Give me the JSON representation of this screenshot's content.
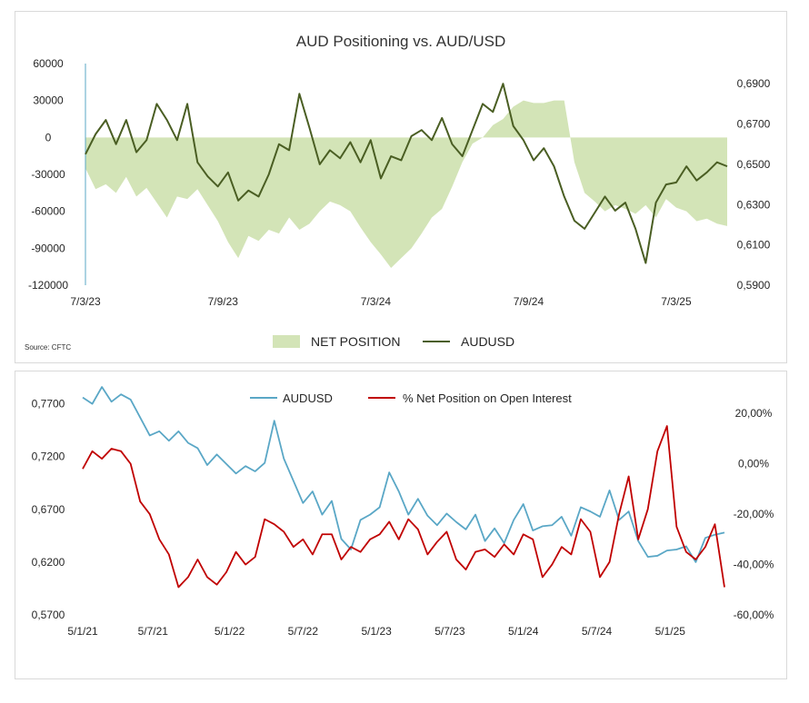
{
  "chart_data": [
    {
      "type": "area+line",
      "title": "AUD Positioning vs. AUD/USD",
      "source": "Source: CFTC",
      "x_ticks": [
        "7/3/23",
        "7/9/23",
        "7/3/24",
        "7/9/24",
        "7/3/25"
      ],
      "y_left_ticks": [
        "60000",
        "30000",
        "0",
        "-30000",
        "-60000",
        "-90000",
        "-120000"
      ],
      "y_left_lim": [
        -120000,
        60000
      ],
      "y_right_ticks": [
        "0,6900",
        "0,6700",
        "0,6500",
        "0,6300",
        "0,6100",
        "0,5900"
      ],
      "y_right_lim": [
        0.59,
        0.7
      ],
      "legend": {
        "placement": "bottom",
        "items": [
          "NET POSITION",
          "AUDUSD"
        ]
      },
      "colors": {
        "net_position": "#d3e4b7",
        "audusd": "#4a5e23"
      },
      "series": [
        {
          "name": "NET POSITION",
          "axis": "left",
          "x_index": [
            0,
            2,
            4,
            6,
            8,
            10,
            12,
            14,
            16,
            18,
            20,
            22,
            24,
            26,
            28,
            30,
            32,
            34,
            36,
            38,
            40,
            42,
            44,
            46,
            48,
            50,
            52,
            54,
            56,
            58,
            60,
            62,
            64,
            66,
            68,
            70,
            72,
            74,
            76,
            78,
            80,
            82,
            84,
            86,
            88,
            90,
            92,
            94,
            96,
            98,
            100,
            102,
            104,
            106,
            108,
            110,
            112,
            114,
            116,
            118,
            120,
            122,
            124,
            126
          ],
          "values": [
            -25000,
            -42000,
            -38000,
            -45000,
            -32000,
            -48000,
            -41000,
            -53000,
            -65000,
            -48000,
            -50000,
            -42000,
            -55000,
            -68000,
            -85000,
            -98000,
            -80000,
            -84000,
            -75000,
            -78000,
            -65000,
            -75000,
            -70000,
            -60000,
            -52000,
            -55000,
            -60000,
            -73000,
            -85000,
            -95000,
            -106000,
            -98000,
            -90000,
            -78000,
            -65000,
            -58000,
            -40000,
            -20000,
            -5000,
            0,
            10000,
            15000,
            25000,
            30000,
            28000,
            28000,
            30000,
            30000,
            -20000,
            -45000,
            -52000,
            -60000,
            -55000,
            -58000,
            -62000,
            -55000,
            -65000,
            -50000,
            -57000,
            -60000,
            -68000,
            -66000,
            -70000,
            -72000
          ]
        },
        {
          "name": "AUDUSD",
          "axis": "right",
          "x_index": [
            0,
            2,
            4,
            6,
            8,
            10,
            12,
            14,
            16,
            18,
            20,
            22,
            24,
            26,
            28,
            30,
            32,
            34,
            36,
            38,
            40,
            42,
            44,
            46,
            48,
            50,
            52,
            54,
            56,
            58,
            60,
            62,
            64,
            66,
            68,
            70,
            72,
            74,
            76,
            78,
            80,
            82,
            84,
            86,
            88,
            90,
            92,
            94,
            96,
            98,
            100,
            102,
            104,
            106,
            108,
            110,
            112,
            114,
            116,
            118,
            120,
            122,
            124,
            126
          ],
          "values": [
            0.655,
            0.665,
            0.672,
            0.66,
            0.672,
            0.656,
            0.662,
            0.68,
            0.672,
            0.662,
            0.68,
            0.651,
            0.644,
            0.639,
            0.646,
            0.632,
            0.637,
            0.634,
            0.645,
            0.66,
            0.657,
            0.685,
            0.668,
            0.65,
            0.657,
            0.653,
            0.661,
            0.651,
            0.662,
            0.643,
            0.654,
            0.652,
            0.664,
            0.667,
            0.662,
            0.673,
            0.66,
            0.654,
            0.667,
            0.68,
            0.676,
            0.69,
            0.669,
            0.662,
            0.652,
            0.658,
            0.649,
            0.634,
            0.622,
            0.618,
            0.626,
            0.634,
            0.627,
            0.631,
            0.618,
            0.601,
            0.631,
            0.64,
            0.641,
            0.649,
            0.642,
            0.646,
            0.651,
            0.649
          ]
        }
      ]
    },
    {
      "type": "line",
      "title": "",
      "x_ticks": [
        "5/1/21",
        "5/7/21",
        "5/1/22",
        "5/7/22",
        "5/1/23",
        "5/7/23",
        "5/1/24",
        "5/7/24",
        "5/1/25"
      ],
      "y_left_ticks": [
        "0,7700",
        "0,7200",
        "0,6700",
        "0,6200",
        "0,5700"
      ],
      "y_left_lim": [
        0.57,
        0.78
      ],
      "y_right_ticks": [
        "20,00%",
        "0,00%",
        "-20,00%",
        "-40,00%",
        "-60,00%"
      ],
      "y_right_lim": [
        -60,
        28
      ],
      "legend": {
        "placement": "top",
        "items": [
          "AUDUSD",
          "% Net Position on Open Interest"
        ]
      },
      "colors": {
        "audusd": "#5aa7c6",
        "net_oi": "#c00000"
      },
      "series": [
        {
          "name": "AUDUSD",
          "axis": "left",
          "x_index": [
            0,
            3,
            6,
            9,
            12,
            15,
            18,
            21,
            24,
            27,
            30,
            33,
            36,
            39,
            42,
            45,
            48,
            51,
            54,
            57,
            60,
            63,
            66,
            69,
            72,
            75,
            78,
            81,
            84,
            87,
            90,
            93,
            96,
            99,
            102,
            105,
            108,
            111,
            114,
            117,
            120,
            123,
            126,
            129,
            132,
            135,
            138,
            141,
            144,
            147,
            150,
            153,
            156,
            159,
            162,
            165,
            168,
            171,
            174,
            177,
            180,
            183,
            186,
            189,
            192,
            195,
            198,
            201
          ],
          "values": [
            0.776,
            0.77,
            0.786,
            0.772,
            0.779,
            0.774,
            0.757,
            0.74,
            0.744,
            0.735,
            0.744,
            0.733,
            0.728,
            0.712,
            0.722,
            0.713,
            0.704,
            0.711,
            0.706,
            0.714,
            0.754,
            0.718,
            0.697,
            0.676,
            0.687,
            0.665,
            0.678,
            0.642,
            0.632,
            0.66,
            0.665,
            0.672,
            0.705,
            0.687,
            0.665,
            0.68,
            0.664,
            0.655,
            0.666,
            0.658,
            0.651,
            0.665,
            0.64,
            0.652,
            0.638,
            0.66,
            0.675,
            0.65,
            0.654,
            0.655,
            0.663,
            0.645,
            0.672,
            0.668,
            0.663,
            0.688,
            0.66,
            0.668,
            0.64,
            0.625,
            0.626,
            0.631,
            0.632,
            0.635,
            0.62,
            0.643,
            0.646,
            0.648
          ]
        },
        {
          "name": "% Net Position on Open Interest",
          "axis": "right",
          "x_index": [
            0,
            3,
            6,
            9,
            12,
            15,
            18,
            21,
            24,
            27,
            30,
            33,
            36,
            39,
            42,
            45,
            48,
            51,
            54,
            57,
            60,
            63,
            66,
            69,
            72,
            75,
            78,
            81,
            84,
            87,
            90,
            93,
            96,
            99,
            102,
            105,
            108,
            111,
            114,
            117,
            120,
            123,
            126,
            129,
            132,
            135,
            138,
            141,
            144,
            147,
            150,
            153,
            156,
            159,
            162,
            165,
            168,
            171,
            174,
            177,
            180,
            183,
            186,
            189,
            192,
            195,
            198,
            201
          ],
          "values": [
            -2,
            5,
            2,
            6,
            5,
            0,
            -15,
            -20,
            -30,
            -36,
            -49,
            -45,
            -38,
            -45,
            -48,
            -43,
            -35,
            -40,
            -37,
            -22,
            -24,
            -27,
            -33,
            -30,
            -36,
            -28,
            -28,
            -38,
            -33,
            -35,
            -30,
            -28,
            -23,
            -30,
            -22,
            -26,
            -36,
            -31,
            -27,
            -38,
            -42,
            -35,
            -34,
            -37,
            -32,
            -36,
            -28,
            -30,
            -45,
            -40,
            -33,
            -36,
            -22,
            -27,
            -45,
            -39,
            -20,
            -5,
            -30,
            -18,
            5,
            15,
            -25,
            -35,
            -38,
            -33,
            -24,
            -49
          ]
        }
      ]
    }
  ]
}
